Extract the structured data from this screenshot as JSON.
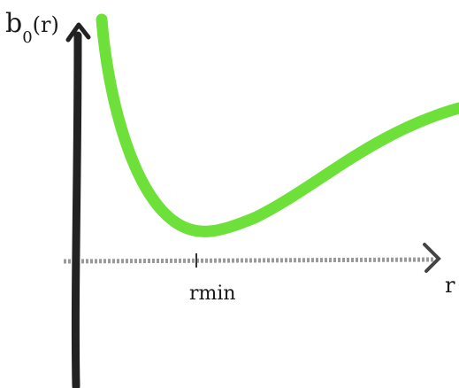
{
  "y_axis_label": {
    "symbol": "b",
    "subscript": "0",
    "argument": "(r)"
  },
  "x_axis_label": "r",
  "minimum_label": "rmin"
}
